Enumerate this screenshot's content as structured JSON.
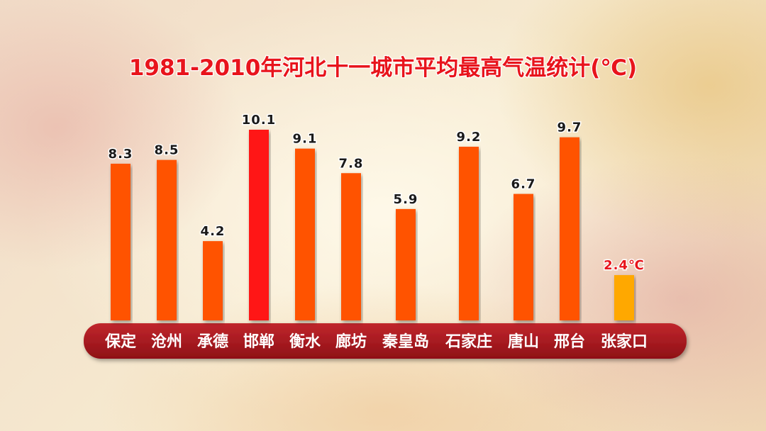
{
  "chart_data": {
    "type": "bar",
    "title": "1981-2010年河北十一城市平均最高气温统计(℃)",
    "categories": [
      "保定",
      "沧州",
      "承德",
      "邯郸",
      "衡水",
      "廊坊",
      "秦皇岛",
      "石家庄",
      "唐山",
      "邢台",
      "张家口"
    ],
    "values": [
      8.3,
      8.5,
      4.2,
      10.1,
      9.1,
      7.8,
      5.9,
      9.2,
      6.7,
      9.7,
      2.4
    ],
    "value_labels": [
      "8.3",
      "8.5",
      "4.2",
      "10.1",
      "9.1",
      "7.8",
      "5.9",
      "9.2",
      "6.7",
      "9.7",
      "2.4℃"
    ],
    "colors": [
      "#ff5200",
      "#ff5200",
      "#ff5200",
      "#ff1414",
      "#ff5200",
      "#ff5200",
      "#ff5200",
      "#ff5200",
      "#ff5200",
      "#ff5200",
      "#ffa800"
    ],
    "label_colors": [
      "#1a1a1a",
      "#1a1a1a",
      "#1a1a1a",
      "#1a1a1a",
      "#1a1a1a",
      "#1a1a1a",
      "#1a1a1a",
      "#1a1a1a",
      "#1a1a1a",
      "#1a1a1a",
      "#e8141c"
    ]
  }
}
